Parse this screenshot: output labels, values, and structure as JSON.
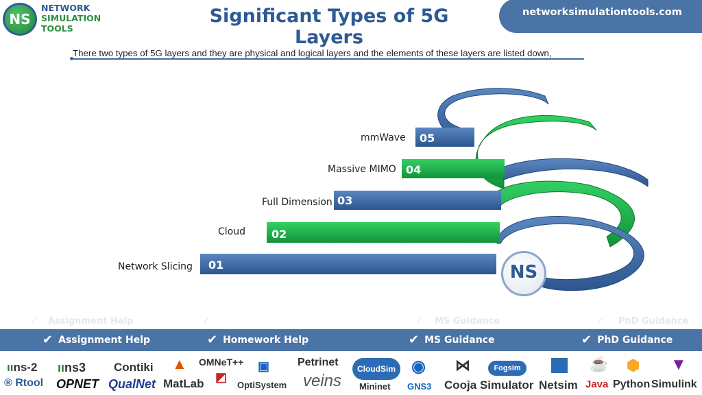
{
  "logo": {
    "badge": "NS",
    "line1": "NETWORK",
    "line2": "SIMULATION",
    "line3": "TOOLS"
  },
  "header": {
    "title": "Significant Types of 5G Layers",
    "site": "networksimulationtools.com"
  },
  "intro": "There two types of 5G layers and they are physical and logical layers and the elements of these layers are listed down,",
  "layers": [
    {
      "num": "05",
      "label": "mmWave"
    },
    {
      "num": "04",
      "label": "Massive MIMO"
    },
    {
      "num": "03",
      "label": "Full Dimension"
    },
    {
      "num": "02",
      "label": "Cloud"
    },
    {
      "num": "01",
      "label": "Network Slicing"
    }
  ],
  "center_badge": "NS",
  "colors": {
    "blue": "#3d67a3",
    "green": "#1db14a",
    "brand": "#2d5a92",
    "nav": "#4a73a6"
  },
  "nav": {
    "check_icon": "check-icon",
    "items": [
      "Assignment Help",
      "Homework Help",
      "MS  Guidance",
      "PhD  Guidance"
    ],
    "ghost_items": [
      "Assignment Help",
      "MS  Guidance",
      "PhD  Guidance"
    ]
  },
  "tools": {
    "ns2": "ns-2",
    "ns3": "ns3",
    "contiki": "Contiki",
    "omnet": "OMNeT++",
    "petrinet": "Petrinet",
    "rtool": "Rtool",
    "opnet": "OPNET",
    "qualnet": "QualNet",
    "matlab": "MatLab",
    "optisystem": "OptiSystem",
    "veins": "veins",
    "cloudsim": "CloudSim",
    "mininet": "Mininet",
    "gns3": "GNS3",
    "cooja": "Cooja Simulator",
    "fogsim": "Fogsim",
    "netsim": "Netsim",
    "java": "Java",
    "python": "Python",
    "simulink": "Simulink"
  }
}
